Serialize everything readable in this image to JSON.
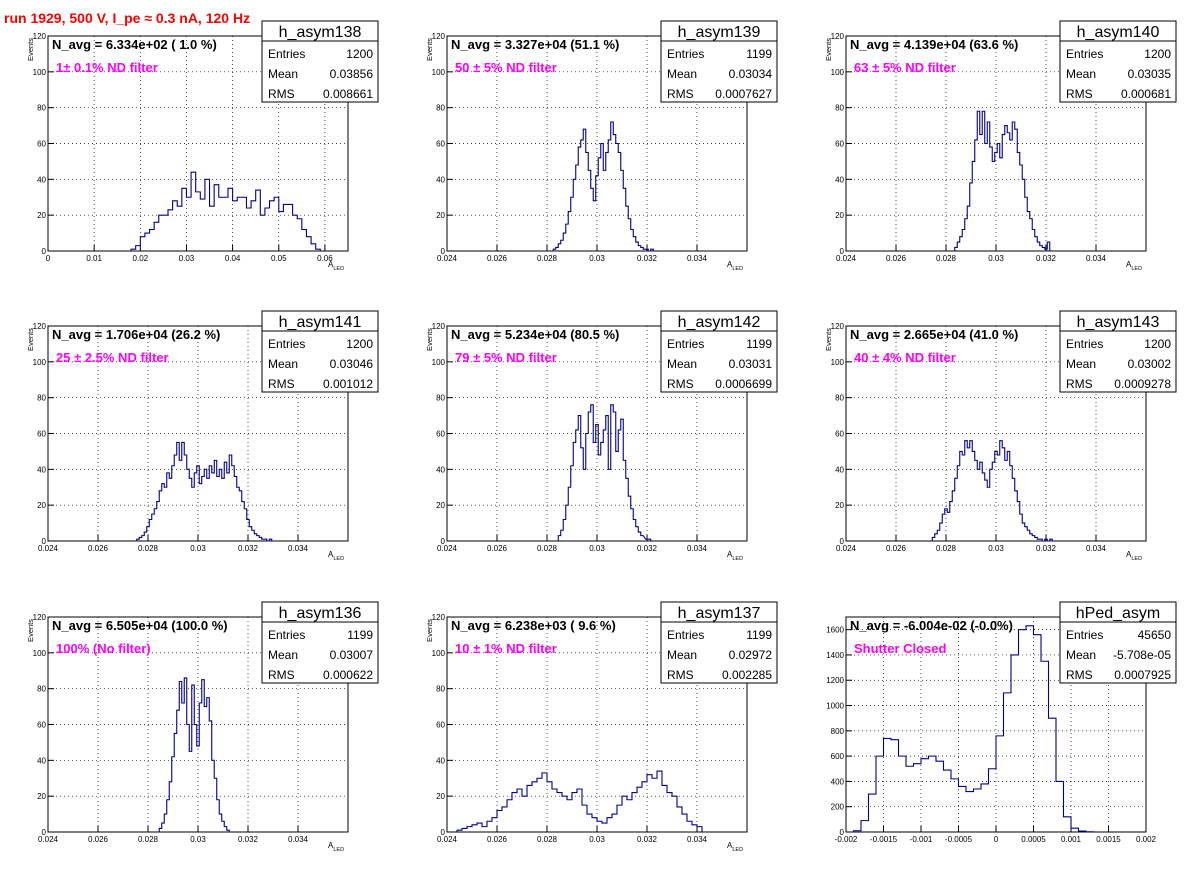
{
  "run_title": "run 1929,   500 V, I_pe ≈ 0.3 nA, 120 Hz",
  "chart_data": [
    {
      "type": "histogram",
      "name": "h_asym138",
      "navg": "N_avg = 6.334e+02 ( 1.0 %)",
      "filter": "1± 0.1% ND filter",
      "stats": {
        "entries": "1200",
        "mean": "0.03856",
        "rms": "0.008661"
      },
      "xlabel": "A",
      "xlabel_sub": "LED",
      "ylabel": "Events",
      "xlim": [
        0,
        0.065
      ],
      "ylim": [
        0,
        120
      ],
      "xticks": [
        0,
        0.01,
        0.02,
        0.03,
        0.04,
        0.05,
        0.06
      ],
      "xtick_labels": [
        "0",
        "0.01",
        "0.02",
        "0.03",
        "0.04",
        "0.05",
        "0.06"
      ],
      "yticks": [
        0,
        20,
        40,
        60,
        80,
        100,
        120
      ],
      "ytick_labels": [
        "0",
        "20",
        "40",
        "60",
        "80",
        "100",
        "120"
      ],
      "x": [
        0.0185,
        0.0195,
        0.0205,
        0.0215,
        0.0225,
        0.0235,
        0.0245,
        0.0255,
        0.0265,
        0.0275,
        0.0285,
        0.0295,
        0.0305,
        0.0315,
        0.0325,
        0.0335,
        0.0345,
        0.0355,
        0.0365,
        0.0375,
        0.0385,
        0.0395,
        0.0405,
        0.0415,
        0.0425,
        0.0435,
        0.0445,
        0.0455,
        0.0465,
        0.0475,
        0.0485,
        0.0495,
        0.0505,
        0.0515,
        0.0525,
        0.0535,
        0.0545,
        0.0555,
        0.0565,
        0.0575,
        0.0585
      ],
      "values": [
        1,
        3,
        8,
        10,
        12,
        16,
        20,
        20,
        23,
        28,
        25,
        35,
        30,
        44,
        33,
        29,
        40,
        25,
        37,
        30,
        30,
        35,
        28,
        30,
        30,
        24,
        28,
        34,
        20,
        24,
        28,
        30,
        22,
        26,
        26,
        20,
        18,
        12,
        8,
        4,
        1
      ]
    },
    {
      "type": "histogram",
      "name": "h_asym139",
      "navg": "N_avg = 3.327e+04 (51.1 %)",
      "filter": "50 ± 5% ND filter",
      "stats": {
        "entries": "1199",
        "mean": "0.03034",
        "rms": "0.0007627"
      },
      "xlabel": "A",
      "xlabel_sub": "LED",
      "ylabel": "Events",
      "xlim": [
        0.024,
        0.036
      ],
      "ylim": [
        0,
        120
      ],
      "xticks": [
        0.024,
        0.026,
        0.028,
        0.03,
        0.032,
        0.034
      ],
      "xtick_labels": [
        "0.024",
        "0.026",
        "0.028",
        "0.03",
        "0.032",
        "0.034"
      ],
      "yticks": [
        0,
        20,
        40,
        60,
        80,
        100,
        120
      ],
      "ytick_labels": [
        "0",
        "20",
        "40",
        "60",
        "80",
        "100",
        "120"
      ],
      "x": [
        0.0283,
        0.0284,
        0.0285,
        0.0286,
        0.0287,
        0.0288,
        0.0289,
        0.029,
        0.0291,
        0.0292,
        0.0293,
        0.0294,
        0.0295,
        0.0296,
        0.0297,
        0.0298,
        0.0299,
        0.03,
        0.0301,
        0.0302,
        0.0303,
        0.0304,
        0.0305,
        0.0306,
        0.0307,
        0.0308,
        0.0309,
        0.031,
        0.0311,
        0.0312,
        0.0313,
        0.0314,
        0.0315,
        0.0316,
        0.0317,
        0.0318,
        0.0319,
        0.032,
        0.0321,
        0.0322
      ],
      "values": [
        1,
        2,
        4,
        6,
        10,
        15,
        22,
        30,
        40,
        48,
        58,
        62,
        68,
        55,
        45,
        35,
        28,
        42,
        52,
        60,
        45,
        55,
        62,
        72,
        65,
        60,
        55,
        45,
        35,
        25,
        18,
        12,
        8,
        5,
        3,
        2,
        1,
        1,
        0,
        1
      ]
    },
    {
      "type": "histogram",
      "name": "h_asym140",
      "navg": "N_avg = 4.139e+04 (63.6 %)",
      "filter": "63 ± 5% ND filter",
      "stats": {
        "entries": "1200",
        "mean": "0.03035",
        "rms": "0.000681"
      },
      "xlabel": "A",
      "xlabel_sub": "LED",
      "ylabel": "Events",
      "xlim": [
        0.024,
        0.036
      ],
      "ylim": [
        0,
        120
      ],
      "xticks": [
        0.024,
        0.026,
        0.028,
        0.03,
        0.032,
        0.034
      ],
      "xtick_labels": [
        "0.024",
        "0.026",
        "0.028",
        "0.03",
        "0.032",
        "0.034"
      ],
      "yticks": [
        0,
        20,
        40,
        60,
        80,
        100,
        120
      ],
      "ytick_labels": [
        "0",
        "20",
        "40",
        "60",
        "80",
        "100",
        "120"
      ],
      "x": [
        0.0284,
        0.0285,
        0.0286,
        0.0287,
        0.0288,
        0.0289,
        0.029,
        0.0291,
        0.0292,
        0.0293,
        0.0294,
        0.0295,
        0.0296,
        0.0297,
        0.0298,
        0.0299,
        0.03,
        0.0301,
        0.0302,
        0.0303,
        0.0304,
        0.0305,
        0.0306,
        0.0307,
        0.0308,
        0.0309,
        0.031,
        0.0311,
        0.0312,
        0.0313,
        0.0314,
        0.0315,
        0.0316,
        0.0317,
        0.0318,
        0.0319,
        0.032,
        0.0321
      ],
      "values": [
        2,
        5,
        8,
        12,
        18,
        25,
        38,
        50,
        62,
        78,
        65,
        78,
        60,
        72,
        58,
        50,
        55,
        60,
        52,
        65,
        70,
        66,
        62,
        72,
        68,
        55,
        48,
        40,
        30,
        22,
        18,
        12,
        8,
        5,
        3,
        2,
        1,
        5
      ]
    },
    {
      "type": "histogram",
      "name": "h_asym141",
      "navg": "N_avg = 1.706e+04 (26.2 %)",
      "filter": "25 ± 2.5% ND filter",
      "stats": {
        "entries": "1200",
        "mean": "0.03046",
        "rms": "0.001012"
      },
      "xlabel": "A",
      "xlabel_sub": "LED",
      "ylabel": "Events",
      "xlim": [
        0.024,
        0.036
      ],
      "ylim": [
        0,
        120
      ],
      "xticks": [
        0.024,
        0.026,
        0.028,
        0.03,
        0.032,
        0.034
      ],
      "xtick_labels": [
        "0.024",
        "0.026",
        "0.028",
        "0.03",
        "0.032",
        "0.034"
      ],
      "yticks": [
        0,
        20,
        40,
        60,
        80,
        100,
        120
      ],
      "ytick_labels": [
        "0",
        "20",
        "40",
        "60",
        "80",
        "100",
        "120"
      ],
      "x": [
        0.0276,
        0.0277,
        0.0278,
        0.0279,
        0.028,
        0.0281,
        0.0282,
        0.0283,
        0.0284,
        0.0285,
        0.0286,
        0.0287,
        0.0288,
        0.0289,
        0.029,
        0.0291,
        0.0292,
        0.0293,
        0.0294,
        0.0295,
        0.0296,
        0.0297,
        0.0298,
        0.0299,
        0.03,
        0.0301,
        0.0302,
        0.0303,
        0.0304,
        0.0305,
        0.0306,
        0.0307,
        0.0308,
        0.0309,
        0.031,
        0.0311,
        0.0312,
        0.0313,
        0.0314,
        0.0315,
        0.0316,
        0.0317,
        0.0318,
        0.0319,
        0.032,
        0.0321,
        0.0322,
        0.0323,
        0.0324,
        0.0325,
        0.0326,
        0.0327,
        0.0328,
        0.0329,
        0.033
      ],
      "values": [
        1,
        2,
        3,
        5,
        8,
        12,
        15,
        18,
        22,
        28,
        32,
        30,
        38,
        35,
        42,
        48,
        55,
        45,
        55,
        48,
        40,
        35,
        30,
        38,
        42,
        32,
        36,
        40,
        35,
        42,
        38,
        45,
        36,
        40,
        35,
        44,
        38,
        48,
        42,
        36,
        30,
        28,
        22,
        18,
        12,
        8,
        6,
        4,
        3,
        2,
        1,
        1,
        0,
        1,
        0
      ]
    },
    {
      "type": "histogram",
      "name": "h_asym142",
      "navg": "N_avg = 5.234e+04 (80.5 %)",
      "filter": "79 ± 5% ND filter",
      "stats": {
        "entries": "1199",
        "mean": "0.03031",
        "rms": "0.0006699"
      },
      "xlabel": "A",
      "xlabel_sub": "LED",
      "ylabel": "Events",
      "xlim": [
        0.024,
        0.036
      ],
      "ylim": [
        0,
        120
      ],
      "xticks": [
        0.024,
        0.026,
        0.028,
        0.03,
        0.032,
        0.034
      ],
      "xtick_labels": [
        "0.024",
        "0.026",
        "0.028",
        "0.03",
        "0.032",
        "0.034"
      ],
      "yticks": [
        0,
        20,
        40,
        60,
        80,
        100,
        120
      ],
      "ytick_labels": [
        "0",
        "20",
        "40",
        "60",
        "80",
        "100",
        "120"
      ],
      "x": [
        0.0285,
        0.0286,
        0.0287,
        0.0288,
        0.0289,
        0.029,
        0.0291,
        0.0292,
        0.0293,
        0.0294,
        0.0295,
        0.0296,
        0.0297,
        0.0298,
        0.0299,
        0.03,
        0.0301,
        0.0302,
        0.0303,
        0.0304,
        0.0305,
        0.0306,
        0.0307,
        0.0308,
        0.0309,
        0.031,
        0.0311,
        0.0312,
        0.0313,
        0.0314,
        0.0315,
        0.0316,
        0.0317,
        0.0318,
        0.032,
        0.0321
      ],
      "values": [
        3,
        6,
        12,
        20,
        30,
        42,
        55,
        62,
        70,
        52,
        40,
        60,
        72,
        76,
        55,
        65,
        48,
        55,
        62,
        70,
        40,
        76,
        72,
        50,
        62,
        68,
        45,
        35,
        25,
        18,
        12,
        8,
        5,
        3,
        1,
        1
      ]
    },
    {
      "type": "histogram",
      "name": "h_asym143",
      "navg": "N_avg = 2.665e+04 (41.0 %)",
      "filter": "40 ± 4% ND filter",
      "stats": {
        "entries": "1200",
        "mean": "0.03002",
        "rms": "0.0009278"
      },
      "xlabel": "A",
      "xlabel_sub": "LED",
      "ylabel": "Events",
      "xlim": [
        0.024,
        0.036
      ],
      "ylim": [
        0,
        120
      ],
      "xticks": [
        0.024,
        0.026,
        0.028,
        0.03,
        0.032,
        0.034
      ],
      "xtick_labels": [
        "0.024",
        "0.026",
        "0.028",
        "0.03",
        "0.032",
        "0.034"
      ],
      "yticks": [
        0,
        20,
        40,
        60,
        80,
        100,
        120
      ],
      "ytick_labels": [
        "0",
        "20",
        "40",
        "60",
        "80",
        "100",
        "120"
      ],
      "x": [
        0.0275,
        0.0276,
        0.0277,
        0.0278,
        0.0279,
        0.028,
        0.0281,
        0.0282,
        0.0283,
        0.0284,
        0.0285,
        0.0286,
        0.0287,
        0.0288,
        0.0289,
        0.029,
        0.0291,
        0.0292,
        0.0293,
        0.0294,
        0.0295,
        0.0296,
        0.0297,
        0.0298,
        0.0299,
        0.03,
        0.0301,
        0.0302,
        0.0303,
        0.0304,
        0.0305,
        0.0306,
        0.0307,
        0.0308,
        0.0309,
        0.031,
        0.0311,
        0.0312,
        0.0313,
        0.0314,
        0.0315,
        0.0316,
        0.0317,
        0.0318,
        0.0319,
        0.032,
        0.0321,
        0.0322,
        0.0323
      ],
      "values": [
        2,
        4,
        6,
        10,
        15,
        18,
        16,
        22,
        28,
        35,
        42,
        50,
        48,
        56,
        52,
        56,
        50,
        45,
        40,
        44,
        38,
        34,
        30,
        40,
        44,
        50,
        48,
        56,
        52,
        45,
        50,
        42,
        35,
        28,
        22,
        15,
        10,
        8,
        6,
        4,
        3,
        2,
        1,
        1,
        0,
        1,
        0,
        1,
        0
      ]
    },
    {
      "type": "histogram",
      "name": "h_asym136",
      "navg": "N_avg = 6.505e+04 (100.0 %)",
      "filter": "100% (No filter)",
      "stats": {
        "entries": "1199",
        "mean": "0.03007",
        "rms": "0.000622"
      },
      "xlabel": "A",
      "xlabel_sub": "LED",
      "ylabel": "Events",
      "xlim": [
        0.024,
        0.036
      ],
      "ylim": [
        0,
        120
      ],
      "xticks": [
        0.024,
        0.026,
        0.028,
        0.03,
        0.032,
        0.034
      ],
      "xtick_labels": [
        "0.024",
        "0.026",
        "0.028",
        "0.03",
        "0.032",
        "0.034"
      ],
      "yticks": [
        0,
        20,
        40,
        60,
        80,
        100,
        120
      ],
      "ytick_labels": [
        "0",
        "20",
        "40",
        "60",
        "80",
        "100",
        "120"
      ],
      "x": [
        0.0285,
        0.0286,
        0.0287,
        0.0288,
        0.0289,
        0.029,
        0.0291,
        0.0292,
        0.0293,
        0.0294,
        0.0295,
        0.0296,
        0.0297,
        0.0298,
        0.0299,
        0.03,
        0.0301,
        0.0302,
        0.0303,
        0.0304,
        0.0305,
        0.0306,
        0.0307,
        0.0308,
        0.0309,
        0.031,
        0.0311,
        0.0312,
        0.0313
      ],
      "values": [
        2,
        5,
        10,
        18,
        28,
        42,
        55,
        68,
        84,
        72,
        86,
        60,
        45,
        82,
        60,
        48,
        72,
        85,
        70,
        75,
        62,
        40,
        30,
        18,
        10,
        6,
        3,
        1,
        0
      ]
    },
    {
      "type": "histogram",
      "name": "h_asym137",
      "navg": "N_avg = 6.238e+03 ( 9.6 %)",
      "filter": "10 ± 1% ND filter",
      "stats": {
        "entries": "1199",
        "mean": "0.02972",
        "rms": "0.002285"
      },
      "xlabel": "A",
      "xlabel_sub": "LED",
      "ylabel": "Events",
      "xlim": [
        0.024,
        0.036
      ],
      "ylim": [
        0,
        120
      ],
      "xticks": [
        0.024,
        0.026,
        0.028,
        0.03,
        0.032,
        0.034
      ],
      "xtick_labels": [
        "0.024",
        "0.026",
        "0.028",
        "0.03",
        "0.032",
        "0.034"
      ],
      "yticks": [
        0,
        20,
        40,
        60,
        80,
        100,
        120
      ],
      "ytick_labels": [
        "0",
        "20",
        "40",
        "60",
        "80",
        "100",
        "120"
      ],
      "x": [
        0.0245,
        0.0247,
        0.0249,
        0.0251,
        0.0253,
        0.0255,
        0.0257,
        0.0259,
        0.0261,
        0.0263,
        0.0265,
        0.0267,
        0.0269,
        0.0271,
        0.0273,
        0.0275,
        0.0277,
        0.0279,
        0.0281,
        0.0283,
        0.0285,
        0.0287,
        0.0289,
        0.0291,
        0.0293,
        0.0295,
        0.0297,
        0.0299,
        0.0301,
        0.0303,
        0.0305,
        0.0307,
        0.0309,
        0.0311,
        0.0313,
        0.0315,
        0.0317,
        0.0319,
        0.0321,
        0.0323,
        0.0325,
        0.0327,
        0.0329,
        0.0331,
        0.0333,
        0.0335,
        0.0337,
        0.0339,
        0.0341
      ],
      "values": [
        1,
        2,
        3,
        4,
        5,
        3,
        6,
        8,
        12,
        14,
        18,
        22,
        24,
        20,
        26,
        28,
        30,
        33,
        28,
        24,
        22,
        20,
        18,
        22,
        24,
        15,
        10,
        8,
        6,
        5,
        8,
        10,
        15,
        20,
        18,
        22,
        25,
        28,
        32,
        30,
        34,
        26,
        22,
        20,
        14,
        10,
        6,
        4,
        3
      ]
    },
    {
      "type": "histogram",
      "name": "hPed_asym",
      "navg": "N_avg = -6.004e-02 (-0.0%)",
      "filter": "Shutter Closed",
      "stats": {
        "entries": "45650",
        "mean": "-5.708e-05",
        "rms": "0.0007925"
      },
      "xlabel": "",
      "xlabel_sub": "",
      "ylabel": "",
      "xlim": [
        -0.002,
        0.002
      ],
      "ylim": [
        0,
        1700
      ],
      "xticks": [
        -0.002,
        -0.0015,
        -0.001,
        -0.0005,
        0,
        0.0005,
        0.001,
        0.0015,
        0.002
      ],
      "xtick_labels": [
        "-0.002",
        "-0.0015",
        "-0.001",
        "-0.0005",
        "0",
        "0.0005",
        "0.001",
        "0.0015",
        "0.002"
      ],
      "yticks": [
        0,
        200,
        400,
        600,
        800,
        1000,
        1200,
        1400,
        1600
      ],
      "ytick_labels": [
        "0",
        "200",
        "400",
        "600",
        "800",
        "1000",
        "1200",
        "1400",
        "1600"
      ],
      "x": [
        -0.00185,
        -0.00175,
        -0.00165,
        -0.00155,
        -0.00145,
        -0.00135,
        -0.00125,
        -0.00115,
        -0.00105,
        -0.00095,
        -0.00085,
        -0.00075,
        -0.00065,
        -0.00055,
        -0.00045,
        -0.00035,
        -0.00025,
        -0.00015,
        -5e-05,
        5e-05,
        0.00015,
        0.00025,
        0.00035,
        0.00045,
        0.00055,
        0.00065,
        0.00075,
        0.00085,
        0.00095,
        0.00105,
        0.00115,
        0.00125
      ],
      "values": [
        10,
        90,
        300,
        600,
        740,
        730,
        600,
        520,
        540,
        580,
        600,
        560,
        490,
        420,
        360,
        320,
        340,
        380,
        500,
        760,
        1100,
        1400,
        1600,
        1630,
        1560,
        1350,
        900,
        400,
        120,
        30,
        8,
        2
      ]
    }
  ]
}
